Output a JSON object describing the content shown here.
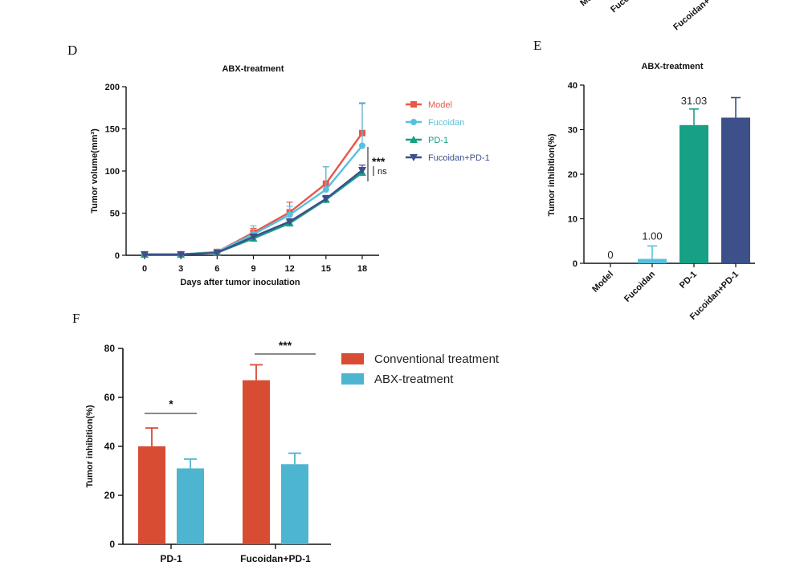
{
  "colors": {
    "model": "#e8584a",
    "fucoidan": "#56c1df",
    "pd1": "#17a085",
    "combo": "#3d5089",
    "conventional": "#d94c34",
    "abx": "#4db5cf",
    "axis": "#111111"
  },
  "panels": {
    "D": {
      "letter": "D"
    },
    "E": {
      "letter": "E"
    },
    "F": {
      "letter": "F"
    }
  },
  "top_fragment": {
    "labels": [
      "Mo",
      "Fucoi",
      "Fucoidan+"
    ]
  },
  "chart_data": [
    {
      "id": "D",
      "type": "line",
      "title": "ABX-treatment",
      "xlabel": "Days after tumor inoculation",
      "ylabel": "Tumor volume(mm³)",
      "x": [
        0,
        3,
        6,
        9,
        12,
        15,
        18
      ],
      "xlim": [
        0,
        18
      ],
      "ylim": [
        0,
        200
      ],
      "yticks": [
        0,
        50,
        100,
        150,
        200
      ],
      "series": [
        {
          "name": "Model",
          "color_key": "model",
          "marker": "square",
          "values": [
            1,
            1,
            4,
            27,
            51,
            85,
            145
          ],
          "err": [
            0,
            0,
            1,
            5,
            12,
            20,
            35
          ]
        },
        {
          "name": "Fucoidan",
          "color_key": "fucoidan",
          "marker": "circle",
          "values": [
            1,
            1,
            4,
            25,
            48,
            78,
            130
          ],
          "err": [
            0,
            0,
            1,
            10,
            10,
            27,
            51
          ]
        },
        {
          "name": "PD-1",
          "color_key": "pd1",
          "marker": "triangle-up",
          "values": [
            1,
            1,
            3,
            20,
            38,
            66,
            98
          ],
          "err": [
            0,
            0,
            1,
            3,
            3,
            3,
            4
          ]
        },
        {
          "name": "Fucoidan+PD-1",
          "color_key": "combo",
          "marker": "triangle-down",
          "values": [
            1,
            1,
            3,
            22,
            40,
            67,
            101
          ],
          "err": [
            0,
            0,
            1,
            3,
            3,
            4,
            6
          ]
        }
      ],
      "annotations": [
        "***",
        "ns"
      ],
      "legend": "right"
    },
    {
      "id": "E",
      "type": "bar",
      "title": "ABX-treatment",
      "ylabel": "Tumor inhibition(%)",
      "categories": [
        "Model",
        "Fucoidan",
        "PD-1",
        "Fucoidan+PD-1"
      ],
      "values": [
        0,
        1.0,
        31.03,
        32.7
      ],
      "err": [
        0,
        2.9,
        3.6,
        4.5
      ],
      "data_labels": [
        "0",
        "1.00",
        "31.03",
        ""
      ],
      "color_keys": [
        "model",
        "fucoidan",
        "pd1",
        "combo"
      ],
      "ylim": [
        0,
        40
      ],
      "yticks": [
        0,
        10,
        20,
        30,
        40
      ]
    },
    {
      "id": "F",
      "type": "bar",
      "ylabel": "Tumor inhibition(%)",
      "categories": [
        "PD-1",
        "Fucoidan+PD-1"
      ],
      "series": [
        {
          "name": "Conventional treatment",
          "color_key": "conventional",
          "values": [
            40,
            67
          ],
          "err": [
            7.5,
            6.3
          ]
        },
        {
          "name": "ABX-treatment",
          "color_key": "abx",
          "values": [
            31,
            32.7
          ],
          "err": [
            3.8,
            4.5
          ]
        }
      ],
      "ylim": [
        0,
        80
      ],
      "yticks": [
        0,
        20,
        40,
        60,
        80
      ],
      "annotations": [
        "*",
        "***"
      ],
      "legend": "top-right"
    }
  ]
}
